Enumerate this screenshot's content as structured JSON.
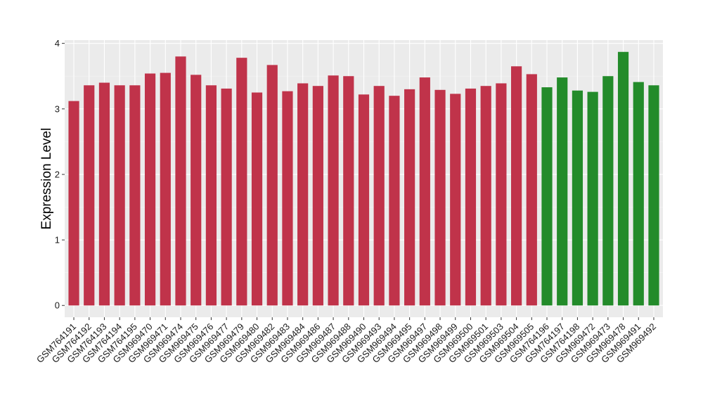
{
  "chart_data": {
    "type": "bar",
    "title": "",
    "xlabel": "",
    "ylabel": "Expression Level",
    "ylim": [
      -0.18,
      4.05
    ],
    "yticks": [
      0,
      1,
      2,
      3,
      4
    ],
    "grid": true,
    "legend": "none",
    "colors": {
      "panel_background": "#ebebeb",
      "grid_major": "#ffffff",
      "grid_minor": "#f5f5f5",
      "red": "#c0334a",
      "green": "#238b2a"
    },
    "categories": [
      "GSM764191",
      "GSM764192",
      "GSM764193",
      "GSM764194",
      "GSM764195",
      "GSM969470",
      "GSM969471",
      "GSM969474",
      "GSM969475",
      "GSM969476",
      "GSM969477",
      "GSM969479",
      "GSM969480",
      "GSM969482",
      "GSM969483",
      "GSM969484",
      "GSM969486",
      "GSM969487",
      "GSM969488",
      "GSM969490",
      "GSM969493",
      "GSM969494",
      "GSM969495",
      "GSM969497",
      "GSM969498",
      "GSM969499",
      "GSM969500",
      "GSM969501",
      "GSM969503",
      "GSM969504",
      "GSM969505",
      "GSM764196",
      "GSM764197",
      "GSM764198",
      "GSM969472",
      "GSM969473",
      "GSM969478",
      "GSM969491",
      "GSM969492"
    ],
    "values": [
      3.12,
      3.36,
      3.4,
      3.36,
      3.36,
      3.54,
      3.55,
      3.8,
      3.52,
      3.36,
      3.31,
      3.78,
      3.25,
      3.67,
      3.27,
      3.39,
      3.35,
      3.51,
      3.5,
      3.22,
      3.35,
      3.2,
      3.3,
      3.48,
      3.29,
      3.23,
      3.31,
      3.35,
      3.39,
      3.65,
      3.53,
      3.33,
      3.48,
      3.28,
      3.26,
      3.5,
      3.87,
      3.41,
      3.36
    ],
    "bar_colors": [
      "red",
      "red",
      "red",
      "red",
      "red",
      "red",
      "red",
      "red",
      "red",
      "red",
      "red",
      "red",
      "red",
      "red",
      "red",
      "red",
      "red",
      "red",
      "red",
      "red",
      "red",
      "red",
      "red",
      "red",
      "red",
      "red",
      "red",
      "red",
      "red",
      "red",
      "red",
      "green",
      "green",
      "green",
      "green",
      "green",
      "green",
      "green",
      "green"
    ]
  }
}
